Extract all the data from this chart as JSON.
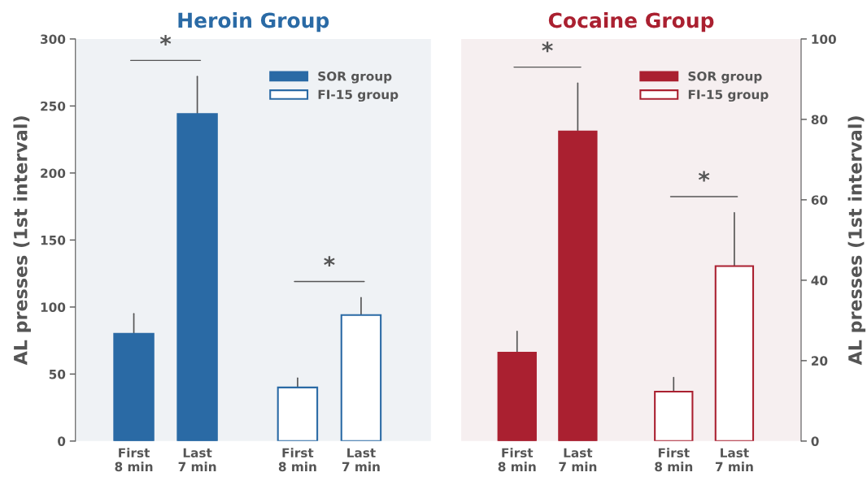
{
  "chart_data": [
    {
      "type": "bar",
      "title": "Heroin Group",
      "ylabel": "AL presses (1st interval)",
      "categories": [
        "First\n8 min",
        "Last\n7 min",
        "First\n8 min",
        "Last\n7 min"
      ],
      "series": [
        {
          "name": "SOR group",
          "color": "#2a6aa5",
          "values": [
            80,
            244,
            null,
            null
          ],
          "errors": [
            [
              80,
              95
            ],
            [
              244,
              272
            ],
            null,
            null
          ]
        },
        {
          "name": "FI-15 group",
          "color": "#2a6aa5",
          "values": [
            null,
            null,
            40,
            94
          ],
          "errors": [
            null,
            null,
            [
              40,
              47
            ],
            [
              94,
              107
            ]
          ]
        }
      ],
      "ylim": [
        0,
        300
      ],
      "yticks": [
        0,
        50,
        100,
        150,
        200,
        250,
        300
      ],
      "grid": false,
      "legend": "top right",
      "annotations": [
        "*",
        "*"
      ]
    },
    {
      "type": "bar",
      "title": "Cocaine Group",
      "y2label": "AL presses (1st interval)",
      "categories": [
        "First\n8 min",
        "Last\n7 min",
        "First\n8 min",
        "Last\n7 min"
      ],
      "series": [
        {
          "name": "SOR group",
          "color": "#aa2030",
          "axis": "y2",
          "values": [
            22,
            77,
            null,
            null
          ],
          "errors": [
            [
              22,
              27.3
            ],
            [
              77,
              89
            ],
            null,
            null
          ]
        },
        {
          "name": "FI-15 group",
          "color": "#aa2030",
          "axis": "y2",
          "values": [
            null,
            null,
            12.3,
            43.5
          ],
          "errors": [
            null,
            null,
            [
              12.3,
              15.8
            ],
            [
              43.5,
              56.8
            ]
          ]
        }
      ],
      "y2lim": [
        0,
        100
      ],
      "y2ticks": [
        0,
        20,
        40,
        60,
        80,
        100
      ],
      "grid": false,
      "legend": "top right",
      "annotations": [
        "*",
        "*"
      ]
    }
  ]
}
